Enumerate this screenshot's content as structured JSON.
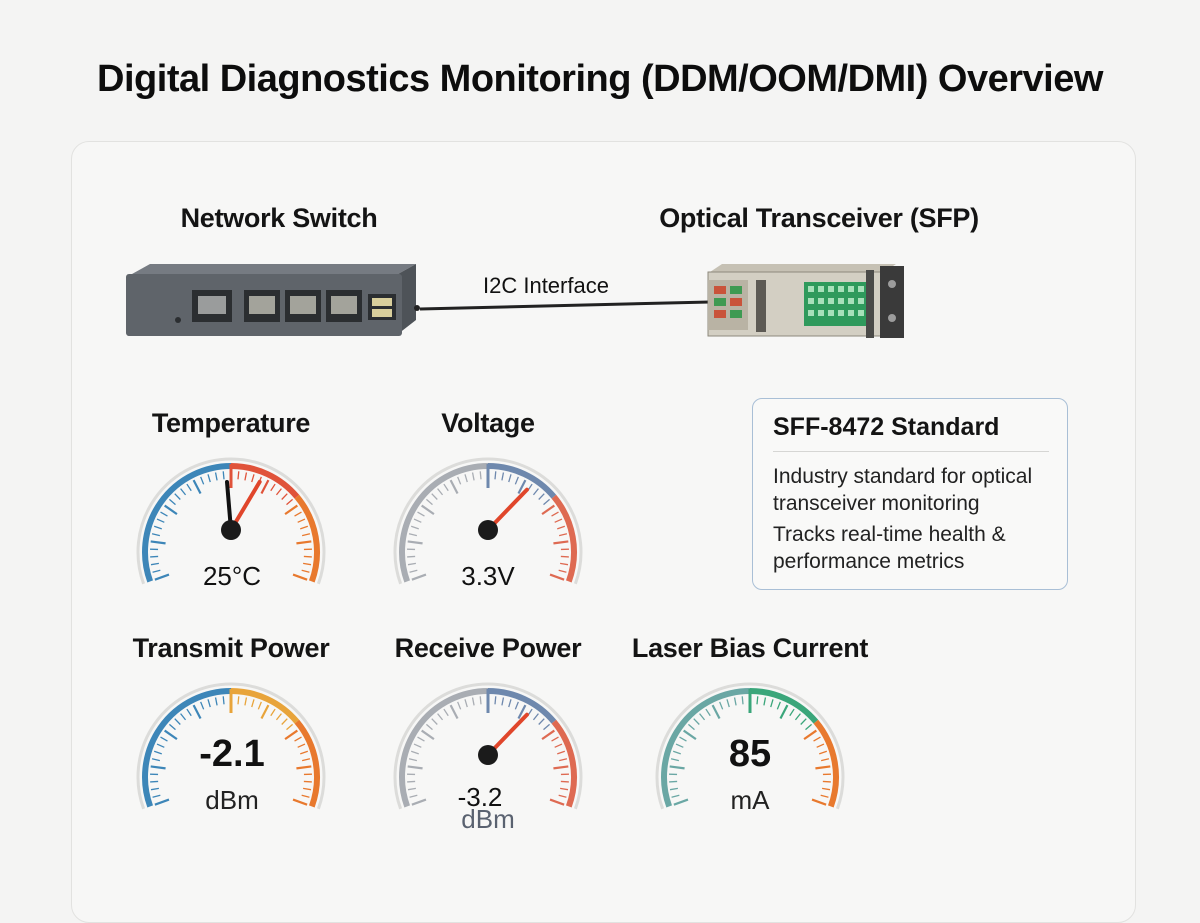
{
  "title": "Digital Diagnostics Monitoring (DDM/OOM/DMI) Overview",
  "devices": {
    "switch_label": "Network Switch",
    "transceiver_label": "Optical Transceiver (SFP)",
    "link_label": "I2C Interface",
    "switch_icon": "network-switch-icon",
    "transceiver_icon": "sfp-transceiver-icon"
  },
  "gauges": [
    {
      "label": "Temperature",
      "value": "25°C",
      "unit": "",
      "reading_fraction": 0.64,
      "colors": [
        "#3d86b8",
        "#e0533a",
        "#e8792e"
      ]
    },
    {
      "label": "Voltage",
      "value": "3.3V",
      "unit": "",
      "reading_fraction": 0.7,
      "colors": [
        "#a9adb3",
        "#6e88ad",
        "#de6a52"
      ]
    },
    {
      "label": "Transmit Power",
      "value": "-2.1",
      "unit": "dBm",
      "reading_fraction": 0.5,
      "colors": [
        "#3d86b8",
        "#e8a43a",
        "#e8792e"
      ]
    },
    {
      "label": "Receive Power",
      "value": "-3.2",
      "unit": "dBm",
      "reading_fraction": 0.7,
      "colors": [
        "#a9adb3",
        "#6e88ad",
        "#de6a52"
      ]
    },
    {
      "label": "Laser Bias Current",
      "value": "85",
      "unit": "mA",
      "reading_fraction": 0.5,
      "colors": [
        "#6aa7a4",
        "#3aa67a",
        "#e8792e"
      ]
    }
  ],
  "info": {
    "title": "SFF-8472 Standard",
    "line1": "Industry standard for optical transceiver monitoring",
    "line2": "Tracks real-time health & performance metrics"
  }
}
